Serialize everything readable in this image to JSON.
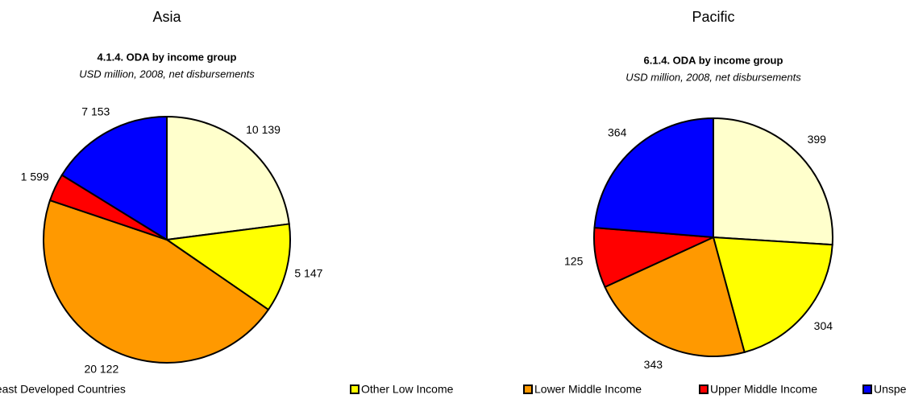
{
  "chart_data": [
    {
      "type": "pie",
      "region": "Asia",
      "title": "4.1.4. ODA by income group",
      "subtitle": "USD million, 2008, net disbursements",
      "values": [
        10139,
        5147,
        20122,
        1599,
        7153
      ],
      "value_labels": [
        "10 139",
        "5 147",
        "20 122",
        "1 599",
        "7 153"
      ]
    },
    {
      "type": "pie",
      "region": "Pacific",
      "title": "6.1.4. ODA by income group",
      "subtitle": "USD million, 2008, net disbursements",
      "values": [
        399,
        304,
        343,
        125,
        364
      ]
    }
  ],
  "legend": {
    "categories": [
      "Least Developed Countries",
      "Other Low Income",
      "Lower Middle Income",
      "Upper Middle Income",
      "Unspecified"
    ],
    "colors": [
      "#ffffcc",
      "#ffff00",
      "#ff9900",
      "#ff0000",
      "#0000ff"
    ]
  }
}
